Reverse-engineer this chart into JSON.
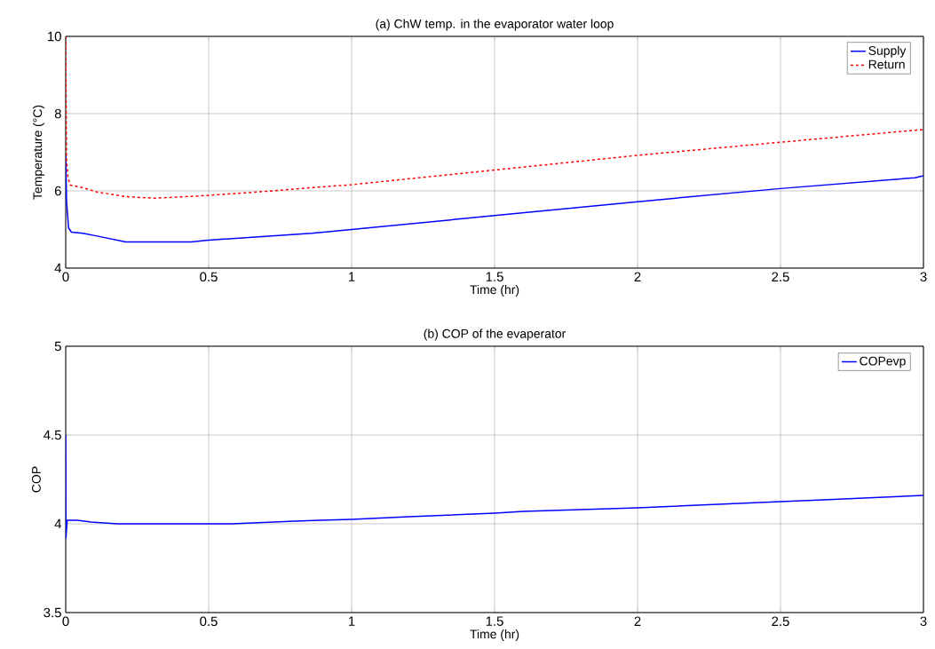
{
  "chart_data": [
    {
      "type": "line",
      "title": "(a) ChW temp. in the evaporator water loop",
      "xlabel": "Time (hr)",
      "ylabel": "Temperature (°C)",
      "xlim": [
        0,
        3
      ],
      "ylim": [
        4,
        10
      ],
      "xticks": [
        0,
        0.5,
        1,
        1.5,
        2,
        2.5,
        3
      ],
      "yticks": [
        4,
        6,
        8,
        10
      ],
      "grid": true,
      "legend": "top right",
      "series": [
        {
          "name": "Supply",
          "color": "#0000ff",
          "line_style": "solid",
          "x": [
            0,
            0.003,
            0.01,
            0.02,
            0.06,
            0.11,
            0.21,
            0.44,
            0.49,
            0.86,
            1.0,
            1.5,
            2.0,
            2.5,
            2.97,
            3.0
          ],
          "values": [
            6.9,
            5.73,
            5.04,
            4.93,
            4.9,
            4.83,
            4.68,
            4.68,
            4.72,
            4.9,
            5.0,
            5.36,
            5.72,
            6.06,
            6.34,
            6.39
          ]
        },
        {
          "name": "Return",
          "color": "#ff0000",
          "line_style": "dashed",
          "x": [
            0,
            0.003,
            0.008,
            0.016,
            0.06,
            0.11,
            0.21,
            0.31,
            0.47,
            0.67,
            0.89,
            1.0,
            1.5,
            2.0,
            2.5,
            3.0
          ],
          "values": [
            10.0,
            6.8,
            6.34,
            6.15,
            6.08,
            5.97,
            5.85,
            5.81,
            5.87,
            5.97,
            6.1,
            6.16,
            6.54,
            6.92,
            7.26,
            7.59
          ]
        }
      ]
    },
    {
      "type": "line",
      "title": "(b) COP of the evaperator",
      "xlabel": "Time (hr)",
      "ylabel": "COP",
      "xlim": [
        0,
        3
      ],
      "ylim": [
        3.5,
        5
      ],
      "xticks": [
        0,
        0.5,
        1,
        1.5,
        2,
        2.5,
        3
      ],
      "yticks": [
        3.5,
        4,
        4.5,
        5
      ],
      "grid": true,
      "legend": "top right",
      "series": [
        {
          "name": "COPevp",
          "color": "#0000ff",
          "line_style": "solid",
          "x": [
            0,
            0.001,
            0.005,
            0.04,
            0.09,
            0.18,
            0.58,
            0.8,
            0.89,
            1.0,
            1.2,
            1.5,
            1.6,
            2.0,
            2.5,
            2.65,
            3.0
          ],
          "values": [
            4.5,
            3.92,
            4.02,
            4.02,
            4.01,
            4.0,
            4.0,
            4.015,
            4.02,
            4.025,
            4.04,
            4.06,
            4.07,
            4.09,
            4.125,
            4.135,
            4.16
          ]
        }
      ]
    }
  ]
}
